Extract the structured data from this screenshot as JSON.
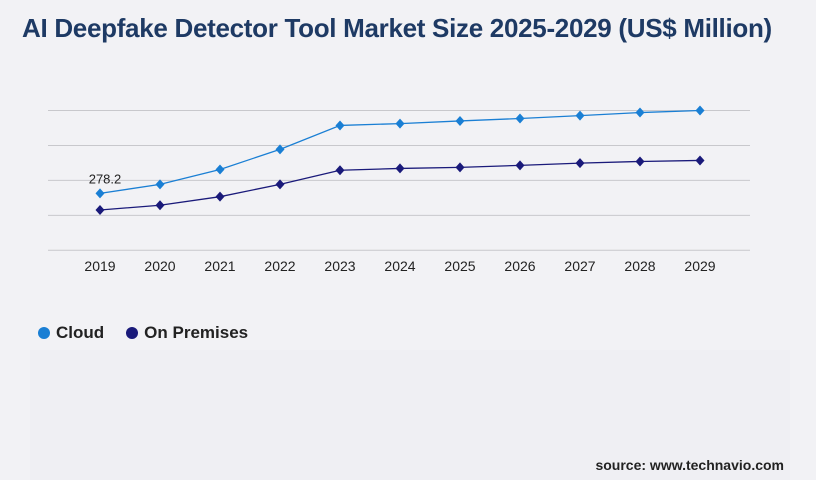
{
  "title": "AI Deepfake Detector Tool Market Size 2025-2029 (US$ Million)",
  "source": "source: www.technavio.com",
  "chart_data": {
    "type": "line",
    "title": "AI Deepfake Detector Tool Market Size 2025-2029 (US$ Million)",
    "categories": [
      "2019",
      "2020",
      "2021",
      "2022",
      "2023",
      "2024",
      "2025",
      "2026",
      "2027",
      "2028",
      "2029"
    ],
    "series": [
      {
        "name": "Cloud",
        "color": "#1a7fd4",
        "values": [
          278.2,
          322,
          395,
          493,
          610,
          619,
          632,
          644,
          658,
          673,
          683
        ]
      },
      {
        "name": "On Premises",
        "color": "#1a1a7a",
        "values": [
          197,
          220,
          262,
          322,
          391,
          400,
          405,
          415,
          426,
          434,
          439
        ]
      }
    ],
    "data_labels": [
      {
        "series": "Cloud",
        "category": "2019",
        "text": "278.2"
      }
    ],
    "ylim": [
      0,
      683
    ],
    "y_tick_labels": false,
    "grid": true,
    "legend": "bottom-left"
  }
}
